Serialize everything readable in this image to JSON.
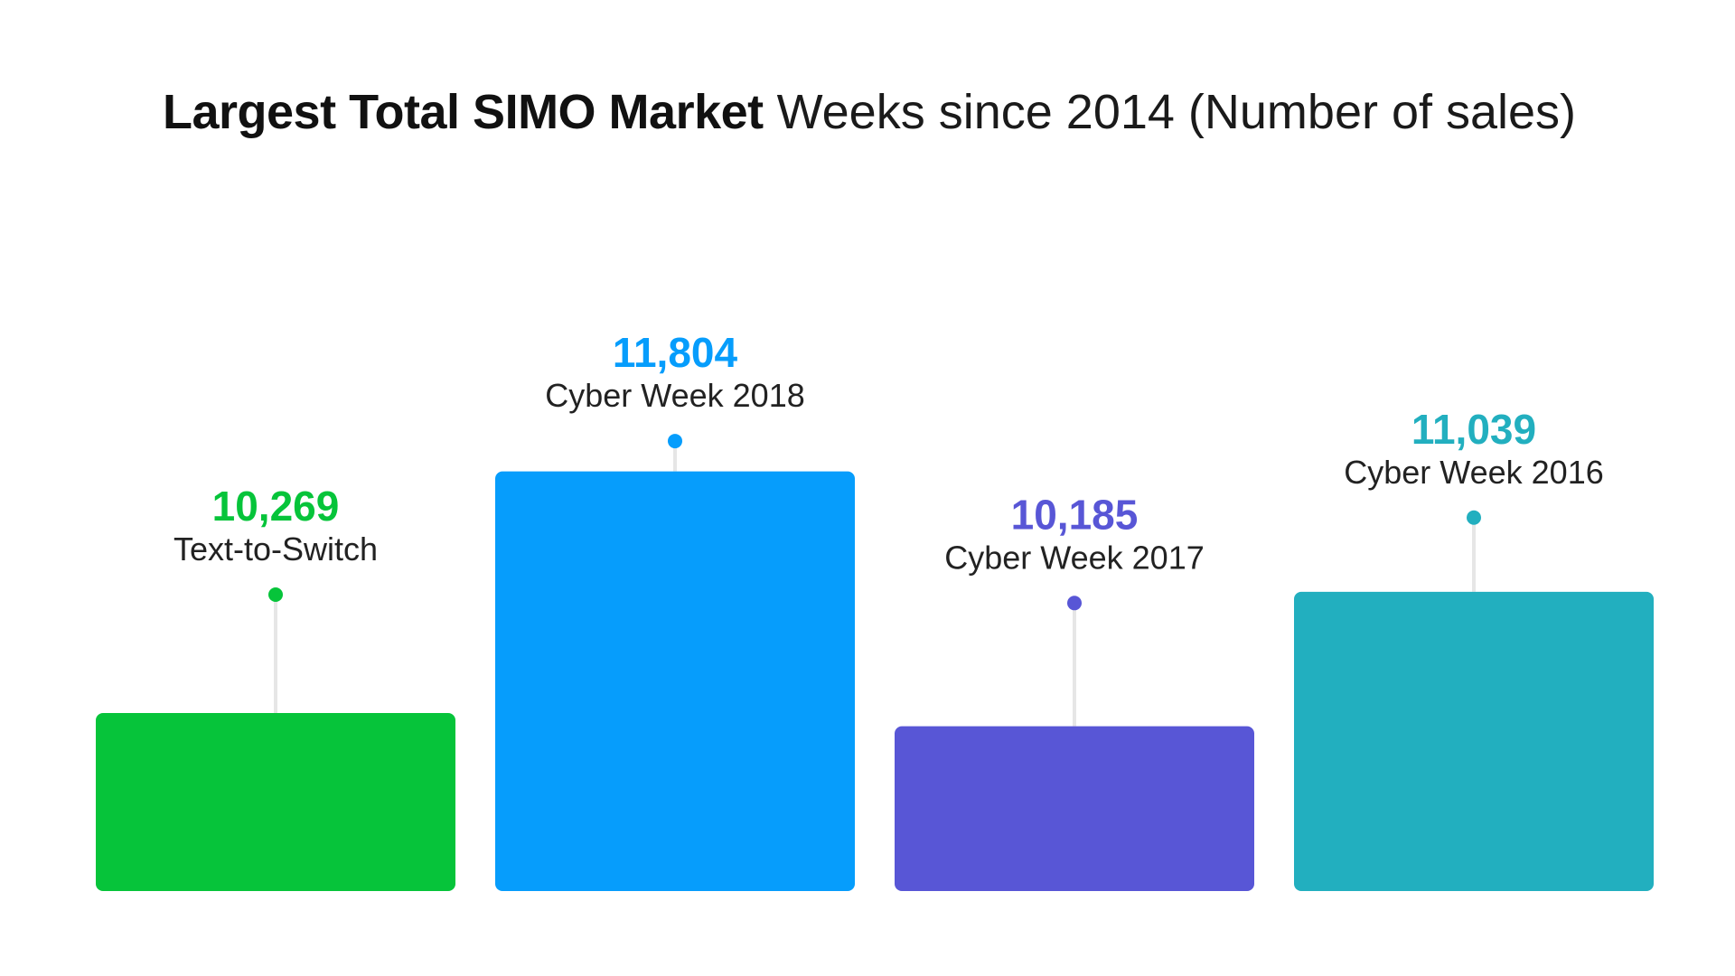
{
  "title": {
    "strong": "Largest Total SIMO Market",
    "light": "Weeks since 2014 (Number of sales)"
  },
  "chart_data": {
    "type": "bar",
    "title": "Largest Total SIMO Market Weeks since 2014 (Number of sales)",
    "categories": [
      "Text-to-Switch",
      "Cyber Week 2018",
      "Cyber Week 2017",
      "Cyber Week 2016"
    ],
    "values": [
      10269,
      11804,
      10185,
      11039
    ],
    "value_labels": [
      "10,269",
      "11,804",
      "10,185",
      "11,039"
    ],
    "colors": [
      "#06C43A",
      "#069DFC",
      "#5856D6",
      "#22AFBF"
    ],
    "stem_color": "#E6E6E6",
    "xlabel": "",
    "ylabel": "",
    "grid": false,
    "legend": "none"
  }
}
